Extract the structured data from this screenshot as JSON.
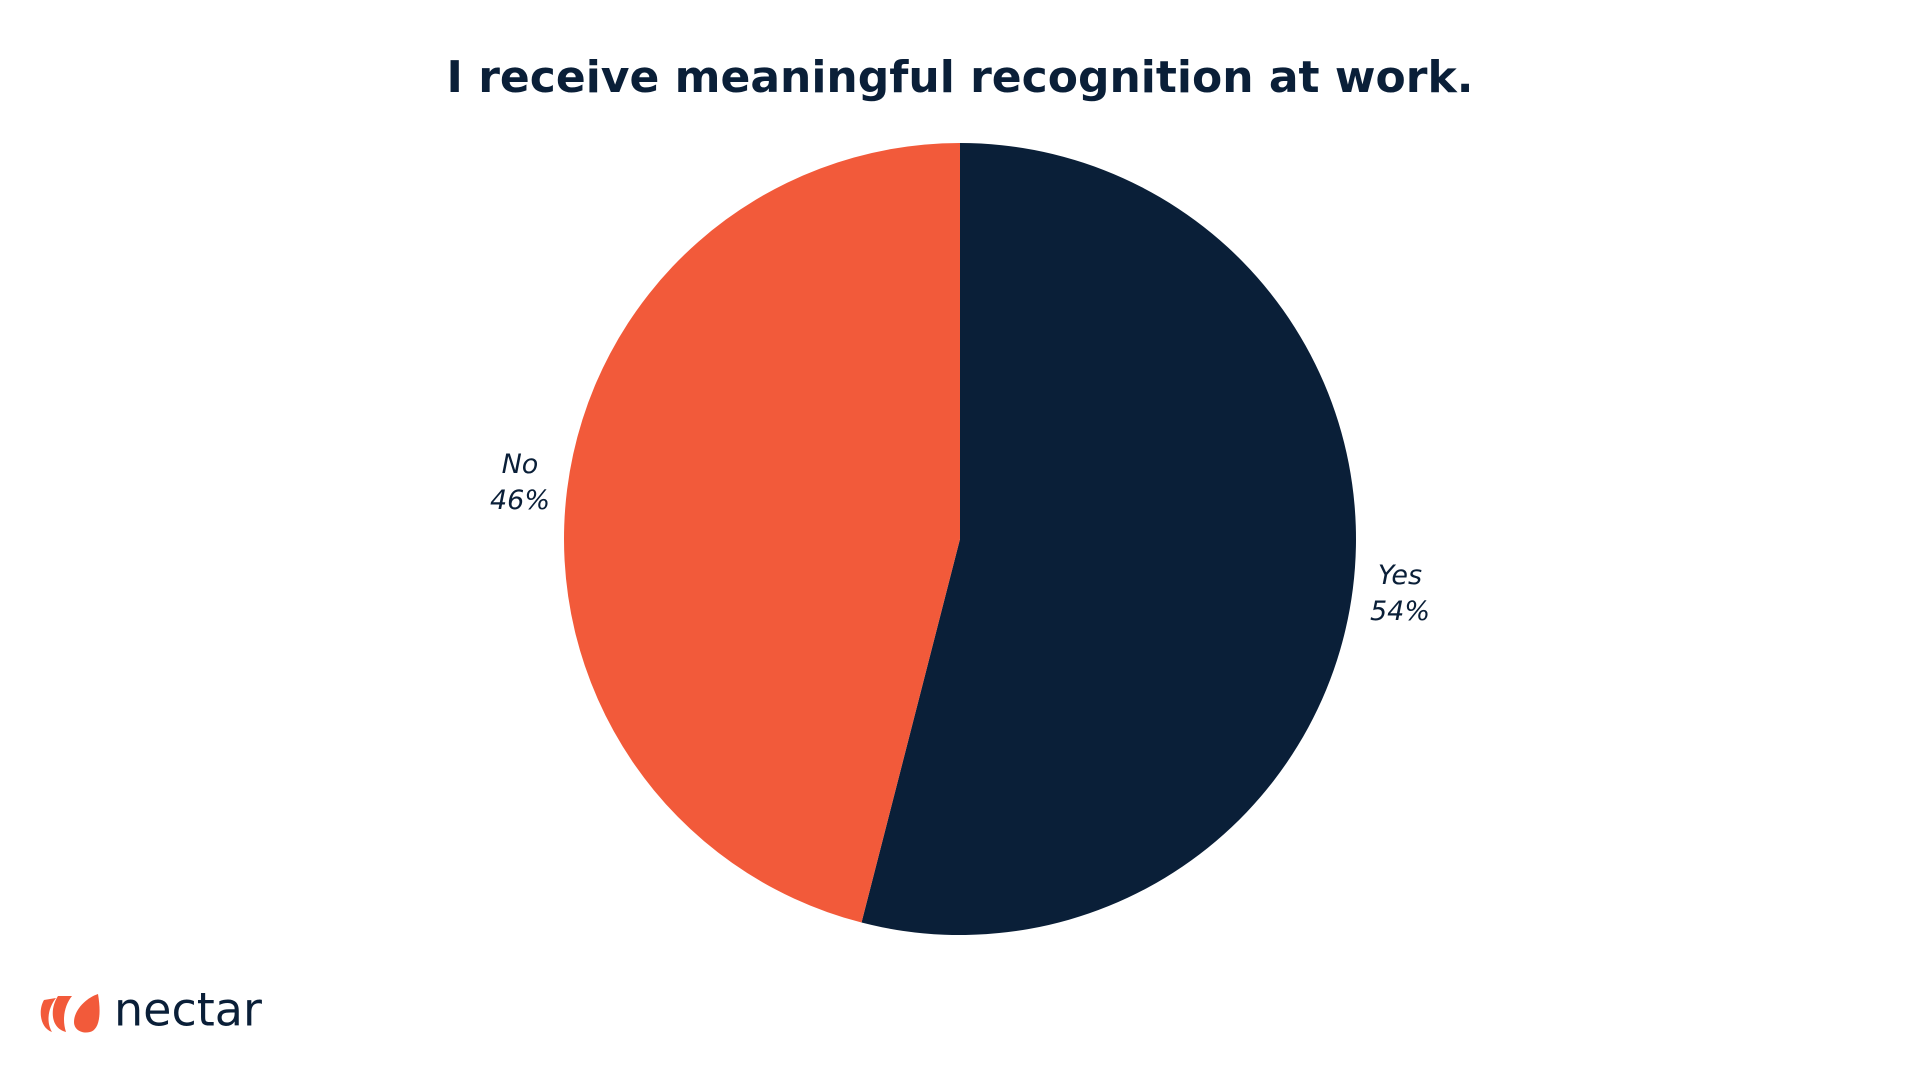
{
  "chart_data": {
    "type": "pie",
    "title": "I receive meaningful recognition at work.",
    "categories": [
      "Yes",
      "No"
    ],
    "values": [
      54,
      46
    ],
    "value_labels": [
      "54%",
      "46%"
    ],
    "colors": [
      "#0a1f38",
      "#f25a3a"
    ]
  },
  "logo_text": "nectar"
}
